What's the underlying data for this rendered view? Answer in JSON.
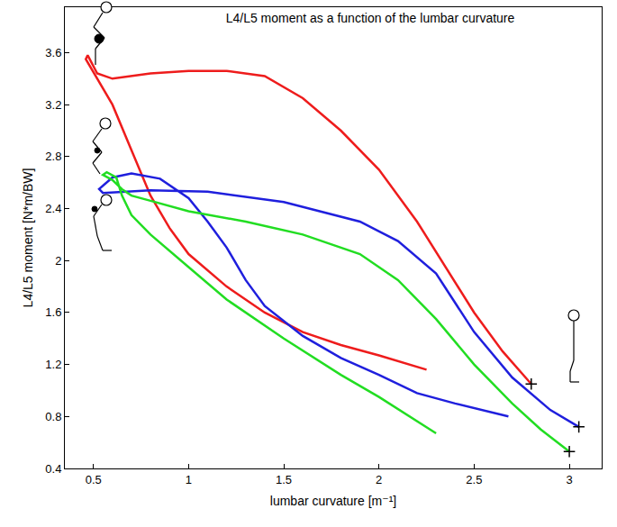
{
  "chart_data": {
    "type": "line",
    "title": "L4/L5 moment as a function of the lumbar curvature",
    "x_label": "lumbar curvature [m⁻¹]",
    "y_label": "L4/L5 moment [N*m/BW]",
    "xlim": [
      0.35,
      3.17
    ],
    "ylim": [
      0.4,
      3.95
    ],
    "xticks": [
      0.5,
      1,
      1.5,
      2,
      2.5,
      3
    ],
    "yticks": [
      0.4,
      0.8,
      1.2,
      1.6,
      2,
      2.4,
      2.8,
      3.2,
      3.6
    ],
    "grid": false,
    "series": [
      {
        "color": "#ee1c1c",
        "marker": "cross",
        "x": [
          2.8,
          2.65,
          2.5,
          2.35,
          2.2,
          2.0,
          1.8,
          1.6,
          1.4,
          1.2,
          1.0,
          0.8,
          0.6,
          0.52,
          0.47,
          0.46,
          0.5,
          0.6,
          0.7,
          0.8,
          0.9,
          1.0,
          1.2,
          1.4,
          1.6,
          1.8,
          2.0,
          2.25
        ],
        "values": [
          1.05,
          1.3,
          1.6,
          1.95,
          2.3,
          2.7,
          3.0,
          3.25,
          3.42,
          3.46,
          3.46,
          3.44,
          3.4,
          3.44,
          3.58,
          3.55,
          3.45,
          3.2,
          2.85,
          2.5,
          2.25,
          2.05,
          1.8,
          1.6,
          1.45,
          1.35,
          1.27,
          1.16
        ]
      },
      {
        "color": "#1f1fdd",
        "marker": "cross",
        "x": [
          3.05,
          2.9,
          2.7,
          2.5,
          2.3,
          2.1,
          1.9,
          1.5,
          1.1,
          0.8,
          0.55,
          0.53,
          0.6,
          0.7,
          0.85,
          1.0,
          1.1,
          1.2,
          1.3,
          1.4,
          1.6,
          1.8,
          2.0,
          2.2,
          2.4,
          2.68
        ],
        "values": [
          0.72,
          0.85,
          1.1,
          1.45,
          1.9,
          2.15,
          2.3,
          2.45,
          2.53,
          2.54,
          2.52,
          2.55,
          2.64,
          2.67,
          2.63,
          2.48,
          2.3,
          2.1,
          1.85,
          1.65,
          1.42,
          1.25,
          1.12,
          0.98,
          0.9,
          0.8
        ]
      },
      {
        "color": "#22dd22",
        "marker": "cross",
        "x": [
          3.0,
          2.85,
          2.7,
          2.5,
          2.3,
          2.1,
          1.9,
          1.6,
          1.3,
          1.0,
          0.8,
          0.7,
          0.65,
          0.6,
          0.55,
          0.57,
          0.62,
          0.65,
          0.7,
          0.8,
          1.0,
          1.2,
          1.5,
          1.8,
          2.0,
          2.3
        ],
        "values": [
          0.53,
          0.7,
          0.9,
          1.2,
          1.55,
          1.85,
          2.05,
          2.2,
          2.3,
          2.38,
          2.46,
          2.5,
          2.55,
          2.62,
          2.66,
          2.68,
          2.64,
          2.5,
          2.35,
          2.2,
          1.95,
          1.7,
          1.4,
          1.12,
          0.95,
          0.67
        ]
      }
    ]
  }
}
